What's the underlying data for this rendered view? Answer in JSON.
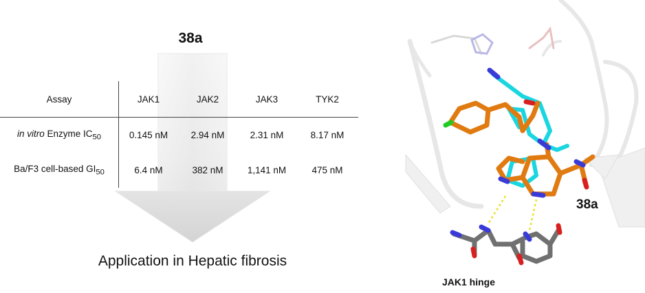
{
  "compound": "38a",
  "table": {
    "headers": [
      "Assay",
      "JAK1",
      "JAK2",
      "JAK3",
      "TYK2"
    ],
    "rows": [
      {
        "assay_italic": "in vitro",
        "assay_text": "Enzyme IC",
        "assay_sub": "50",
        "values": [
          "0.145 nM",
          "2.94 nM",
          "2.31 nM",
          "8.17 nM"
        ]
      },
      {
        "assay_italic": "",
        "assay_text": "Ba/F3 cell-based GI",
        "assay_sub": "50",
        "values": [
          "6.4 nM",
          "382 nM",
          "1,141 nM",
          "475 nM"
        ]
      }
    ]
  },
  "application": "Application in Hepatic fibrosis",
  "structure": {
    "compound_label": "38a",
    "hinge_label": "JAK1 hinge",
    "colors": {
      "ligand_orange": "#e07b12",
      "ligand_cyan": "#19d6e0",
      "hinge_gray": "#707070",
      "hbond": "#e8e020",
      "nitrogen": "#3a3ad8",
      "oxygen": "#d82020",
      "chlorine": "#22cc22"
    }
  }
}
